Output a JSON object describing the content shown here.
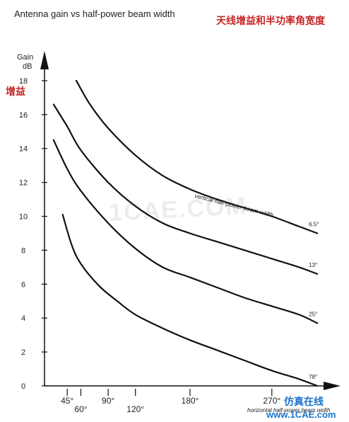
{
  "chart_data": {
    "type": "line",
    "title": "Antenna gain vs half-power beam width",
    "title_cn": "天线增益和半功率角宽度",
    "ylabel_lines": [
      "Gain",
      "dB"
    ],
    "ylabel_cn": "增益",
    "xlabel": "horizontal half-power beam width",
    "curve_label": "vertical half-power beam width",
    "ylim": [
      0,
      19
    ],
    "yticks": [
      0,
      2,
      4,
      6,
      8,
      10,
      12,
      14,
      16,
      18
    ],
    "xlim": [
      20,
      330
    ],
    "xticks": [
      {
        "value": 45,
        "label": "45°",
        "row": 1
      },
      {
        "value": 60,
        "label": "60°",
        "row": 2
      },
      {
        "value": 90,
        "label": "90°",
        "row": 1
      },
      {
        "value": 120,
        "label": "120°",
        "row": 2
      },
      {
        "value": 180,
        "label": "180°",
        "row": 1
      },
      {
        "value": 270,
        "label": "270°",
        "row": 1
      }
    ],
    "grid": false,
    "series": [
      {
        "name": "6.5°",
        "x": [
          55,
          70,
          90,
          120,
          150,
          180,
          210,
          240,
          270,
          300,
          320
        ],
        "y": [
          18.0,
          16.6,
          15.2,
          13.6,
          12.4,
          11.6,
          11.0,
          10.5,
          10.0,
          9.4,
          9.0
        ]
      },
      {
        "name": "13°",
        "x": [
          30,
          45,
          60,
          90,
          120,
          150,
          180,
          210,
          240,
          270,
          300,
          320
        ],
        "y": [
          16.6,
          15.3,
          13.9,
          12.0,
          10.6,
          9.6,
          9.0,
          8.5,
          8.0,
          7.5,
          7.0,
          6.6
        ]
      },
      {
        "name": "25°",
        "x": [
          30,
          45,
          60,
          90,
          120,
          150,
          180,
          210,
          240,
          270,
          300,
          320
        ],
        "y": [
          14.5,
          12.8,
          11.5,
          9.6,
          8.1,
          7.0,
          6.4,
          5.8,
          5.2,
          4.7,
          4.2,
          3.7
        ]
      },
      {
        "name": "78°",
        "x": [
          40,
          50,
          60,
          80,
          100,
          120,
          150,
          180,
          210,
          240,
          270,
          300,
          320
        ],
        "y": [
          10.1,
          8.3,
          7.2,
          5.9,
          5.0,
          4.2,
          3.4,
          2.7,
          2.1,
          1.5,
          0.9,
          0.4,
          0.0
        ]
      }
    ]
  },
  "watermark": {
    "center": "1CAE.COM",
    "bottom_line1": "仿真在线",
    "bottom_line2": "www.1CAE.com"
  }
}
